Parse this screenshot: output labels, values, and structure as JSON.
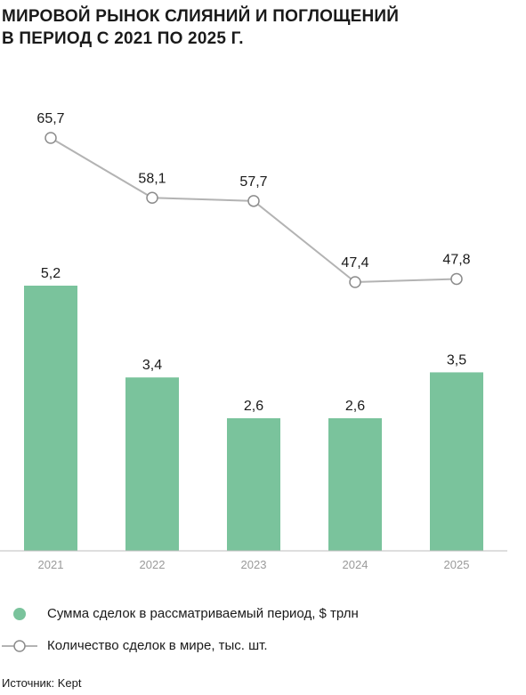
{
  "title": {
    "line1": "МИРОВОЙ РЫНОК СЛИЯНИЙ И ПОГЛОЩЕНИЙ",
    "line2": "В ПЕРИОД С 2021 ПО 2025 Г."
  },
  "chart_data": {
    "type": "bar",
    "categories": [
      "2021",
      "2022",
      "2023",
      "2024",
      "2025"
    ],
    "series": [
      {
        "name": "Сумма сделок в рассматриваемый период, $ трлн",
        "type": "bar",
        "values": [
          5.2,
          3.4,
          2.6,
          2.6,
          3.5
        ],
        "value_labels": [
          "5,2",
          "3,4",
          "2,6",
          "2,6",
          "3,5"
        ],
        "color": "#7ac39c"
      },
      {
        "name": "Количество сделок в мире, тыс. шт.",
        "type": "line",
        "values": [
          65.7,
          58.1,
          57.7,
          47.4,
          47.8
        ],
        "value_labels": [
          "65,7",
          "58,1",
          "57,7",
          "47,4",
          "47,8"
        ],
        "color": "#b3b3b3"
      }
    ],
    "legend_position": "bottom-left",
    "grid": false
  },
  "legend": {
    "bar_label": "Сумма сделок в рассматриваемый период, $ трлн",
    "line_label": "Количество сделок в мире, тыс. шт."
  },
  "source": "Источник: Kept"
}
